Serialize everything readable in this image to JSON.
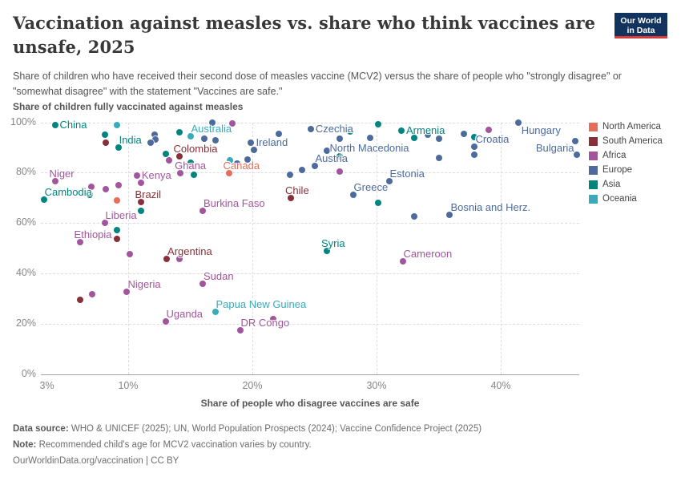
{
  "header": {
    "title": "Vaccination against measles vs. share who think vaccines are unsafe, 2025",
    "subtitle": "Share of children who have received their second dose of measles vaccine (MCV2) versus the share of people who \"strongly disagree\" or \"somewhat disagree\" with the statement \"Vaccines are safe.\"",
    "logo_line1": "Our World",
    "logo_line2": "in Data"
  },
  "chart_data": {
    "type": "scatter",
    "title": "Vaccination against measles vs. share who think vaccines are unsafe, 2025",
    "xlabel": "Share of people who disagree vaccines are safe",
    "ylabel": "Share of children fully vaccinated against measles",
    "xlim": [
      3,
      46.5
    ],
    "ylim": [
      0,
      100
    ],
    "grid": true,
    "legend_position": "right",
    "x_ticks": [
      {
        "value": 3,
        "label": "3%",
        "align": "start"
      },
      {
        "value": 10,
        "label": "10%"
      },
      {
        "value": 20,
        "label": "20%"
      },
      {
        "value": 30,
        "label": "30%"
      },
      {
        "value": 40,
        "label": "40%"
      }
    ],
    "y_ticks": [
      {
        "value": 0,
        "label": "0%"
      },
      {
        "value": 20,
        "label": "20%"
      },
      {
        "value": 40,
        "label": "40%"
      },
      {
        "value": 60,
        "label": "60%"
      },
      {
        "value": 80,
        "label": "80%"
      },
      {
        "value": 100,
        "label": "100%"
      }
    ],
    "continent_colors": {
      "North America": "#E56E5A",
      "South America": "#883039",
      "Africa": "#A2559C",
      "Europe": "#4C6A9C",
      "Asia": "#00847E",
      "Oceania": "#38AABA"
    },
    "legend": [
      {
        "label": "North America",
        "color": "#E56E5A"
      },
      {
        "label": "South America",
        "color": "#883039"
      },
      {
        "label": "Africa",
        "color": "#A2559C"
      },
      {
        "label": "Europe",
        "color": "#4C6A9C"
      },
      {
        "label": "Asia",
        "color": "#00847E"
      },
      {
        "label": "Oceania",
        "color": "#38AABA"
      }
    ],
    "points": [
      {
        "name": "China",
        "continent": "Asia",
        "x": 4.1,
        "y": 98.9,
        "anchor": "r"
      },
      {
        "name": "India",
        "continent": "Asia",
        "x": 9.2,
        "y": 90.0,
        "anchor": "ar"
      },
      {
        "name": "Niger",
        "continent": "Africa",
        "x": 4.1,
        "y": 76.6,
        "anchor": "a"
      },
      {
        "name": "Cambodia",
        "continent": "Asia",
        "x": 3.2,
        "y": 69.3,
        "anchor": "ar"
      },
      {
        "name": "Ethiopia",
        "continent": "Africa",
        "x": 6.1,
        "y": 52.5,
        "anchor": "a"
      },
      {
        "name": "Liberia",
        "continent": "Africa",
        "x": 8.1,
        "y": 60.1,
        "anchor": "ar"
      },
      {
        "name": "Kenya",
        "continent": "Africa",
        "x": 10.7,
        "y": 78.9,
        "anchor": "r"
      },
      {
        "name": "Brazil",
        "continent": "South America",
        "x": 11.0,
        "y": 68.4,
        "anchor": "a"
      },
      {
        "name": "Nigeria",
        "continent": "Africa",
        "x": 9.9,
        "y": 32.8,
        "anchor": "ar"
      },
      {
        "name": "Argentina",
        "continent": "South America",
        "x": 13.1,
        "y": 45.8,
        "anchor": "ar"
      },
      {
        "name": "Sudan",
        "continent": "Africa",
        "x": 16.0,
        "y": 35.9,
        "anchor": "ar"
      },
      {
        "name": "Uganda",
        "continent": "Africa",
        "x": 13.0,
        "y": 21.0,
        "anchor": "ar"
      },
      {
        "name": "Papua New Guinea",
        "continent": "Oceania",
        "x": 17.0,
        "y": 24.8,
        "anchor": "ar"
      },
      {
        "name": "DR Congo",
        "continent": "Africa",
        "x": 19.0,
        "y": 17.5,
        "anchor": "ar"
      },
      {
        "name": "Burkina Faso",
        "continent": "Africa",
        "x": 16.0,
        "y": 64.9,
        "anchor": "ar"
      },
      {
        "name": "Ghana",
        "continent": "Africa",
        "x": 14.2,
        "y": 79.8,
        "anchor": "a"
      },
      {
        "name": "Colombia",
        "continent": "South America",
        "x": 14.1,
        "y": 86.4,
        "anchor": "a"
      },
      {
        "name": "Australia",
        "continent": "Oceania",
        "x": 15.0,
        "y": 94.4,
        "anchor": "ar"
      },
      {
        "name": "Canada",
        "continent": "North America",
        "x": 18.1,
        "y": 79.8,
        "anchor": "a"
      },
      {
        "name": "Ireland",
        "continent": "Europe",
        "x": 19.9,
        "y": 91.9,
        "anchor": "r"
      },
      {
        "name": "Czechia",
        "continent": "Europe",
        "x": 24.7,
        "y": 97.3,
        "anchor": "r"
      },
      {
        "name": "Austria",
        "continent": "Europe",
        "x": 25.0,
        "y": 82.7,
        "anchor": "ar"
      },
      {
        "name": "North Macedonia",
        "continent": "Europe",
        "x": 27.0,
        "y": 93.5,
        "anchor": "b"
      },
      {
        "name": "Chile",
        "continent": "South America",
        "x": 23.1,
        "y": 70.0,
        "anchor": "a"
      },
      {
        "name": "Greece",
        "continent": "Europe",
        "x": 28.1,
        "y": 71.2,
        "anchor": "ar"
      },
      {
        "name": "Estonia",
        "continent": "Europe",
        "x": 31.0,
        "y": 76.6,
        "anchor": "ar"
      },
      {
        "name": "Bosnia and Herz.",
        "continent": "Europe",
        "x": 35.9,
        "y": 63.3,
        "anchor": "ar"
      },
      {
        "name": "Syria",
        "continent": "Asia",
        "x": 26.0,
        "y": 49.0,
        "anchor": "a"
      },
      {
        "name": "Cameroon",
        "continent": "Africa",
        "x": 32.1,
        "y": 44.8,
        "anchor": "ar"
      },
      {
        "name": "Armenia",
        "continent": "Asia",
        "x": 32.0,
        "y": 96.7,
        "anchor": "r"
      },
      {
        "name": "Croatia",
        "continent": "Europe",
        "x": 37.9,
        "y": 90.3,
        "anchor": "ar"
      },
      {
        "name": "Hungary",
        "continent": "Europe",
        "x": 41.4,
        "y": 99.8,
        "anchor": "br"
      },
      {
        "name": "Bulgaria",
        "continent": "Europe",
        "x": 46.1,
        "y": 87.1,
        "anchor": "al"
      },
      {
        "continent": "Oceania",
        "x": 9.1,
        "y": 98.9
      },
      {
        "continent": "Asia",
        "x": 8.1,
        "y": 95.1
      },
      {
        "continent": "South America",
        "x": 8.2,
        "y": 92.0
      },
      {
        "continent": "Europe",
        "x": 12.1,
        "y": 95.1
      },
      {
        "continent": "Europe",
        "x": 12.2,
        "y": 93.2
      },
      {
        "continent": "Europe",
        "x": 11.8,
        "y": 92.0
      },
      {
        "continent": "Asia",
        "x": 14.1,
        "y": 96.0
      },
      {
        "continent": "Asia",
        "x": 13.0,
        "y": 87.4
      },
      {
        "continent": "Europe",
        "x": 16.8,
        "y": 99.8
      },
      {
        "continent": "Africa",
        "x": 18.4,
        "y": 99.5
      },
      {
        "continent": "Europe",
        "x": 16.1,
        "y": 93.5
      },
      {
        "continent": "Europe",
        "x": 17.0,
        "y": 92.8
      },
      {
        "continent": "Oceania",
        "x": 18.2,
        "y": 84.9
      },
      {
        "continent": "Europe",
        "x": 18.8,
        "y": 83.6
      },
      {
        "continent": "Europe",
        "x": 19.6,
        "y": 85.2
      },
      {
        "continent": "Europe",
        "x": 20.1,
        "y": 89.0
      },
      {
        "continent": "Europe",
        "x": 22.1,
        "y": 95.4
      },
      {
        "continent": "Asia",
        "x": 27.9,
        "y": 96.3
      },
      {
        "continent": "Asia",
        "x": 30.1,
        "y": 99.2
      },
      {
        "continent": "Europe",
        "x": 26.0,
        "y": 88.7
      },
      {
        "continent": "Asia",
        "x": 27.0,
        "y": 86.5
      },
      {
        "continent": "Africa",
        "x": 27.0,
        "y": 80.4
      },
      {
        "continent": "Europe",
        "x": 23.0,
        "y": 79.2
      },
      {
        "continent": "Europe",
        "x": 24.0,
        "y": 81.1
      },
      {
        "continent": "Europe",
        "x": 29.5,
        "y": 93.8
      },
      {
        "continent": "Asia",
        "x": 33.0,
        "y": 93.8
      },
      {
        "continent": "Europe",
        "x": 34.1,
        "y": 95.1
      },
      {
        "continent": "Europe",
        "x": 35.0,
        "y": 93.5
      },
      {
        "continent": "Europe",
        "x": 35.0,
        "y": 86.0
      },
      {
        "continent": "Europe",
        "x": 37.0,
        "y": 95.4
      },
      {
        "continent": "Asia",
        "x": 37.9,
        "y": 94.1
      },
      {
        "continent": "Europe",
        "x": 37.9,
        "y": 87.1
      },
      {
        "continent": "Africa",
        "x": 39.0,
        "y": 97.0
      },
      {
        "continent": "Europe",
        "x": 46.0,
        "y": 92.5
      },
      {
        "continent": "Europe",
        "x": 33.0,
        "y": 62.6
      },
      {
        "continent": "Asia",
        "x": 30.1,
        "y": 68.0
      },
      {
        "continent": "Africa",
        "x": 13.3,
        "y": 84.9
      },
      {
        "continent": "Asia",
        "x": 15.0,
        "y": 83.9
      },
      {
        "continent": "Asia",
        "x": 15.3,
        "y": 79.2
      },
      {
        "continent": "Africa",
        "x": 11.0,
        "y": 76.0
      },
      {
        "continent": "Africa",
        "x": 7.0,
        "y": 74.4
      },
      {
        "continent": "Africa",
        "x": 8.2,
        "y": 73.4
      },
      {
        "continent": "Africa",
        "x": 9.2,
        "y": 75.0
      },
      {
        "continent": "Asia",
        "x": 6.9,
        "y": 71.2
      },
      {
        "continent": "North America",
        "x": 9.1,
        "y": 69.0
      },
      {
        "continent": "Asia",
        "x": 9.1,
        "y": 57.2
      },
      {
        "continent": "South America",
        "x": 9.1,
        "y": 53.7
      },
      {
        "continent": "Asia",
        "x": 11.0,
        "y": 64.9
      },
      {
        "continent": "Africa",
        "x": 10.1,
        "y": 47.7
      },
      {
        "continent": "Africa",
        "x": 14.1,
        "y": 45.8
      },
      {
        "continent": "Africa",
        "x": 7.1,
        "y": 31.8
      },
      {
        "continent": "South America",
        "x": 6.1,
        "y": 29.6
      },
      {
        "continent": "Africa",
        "x": 21.7,
        "y": 21.9
      }
    ]
  },
  "footer": {
    "datasource_prefix": "Data source:",
    "datasource": " WHO & UNICEF (2025); UN, World Population Prospects (2024); Vaccine Confidence Project (2025)",
    "note_prefix": "Note:",
    "note": " Recommended child's age for MCV2 vaccination varies by country.",
    "license": "OurWorldinData.org/vaccination | CC BY"
  }
}
